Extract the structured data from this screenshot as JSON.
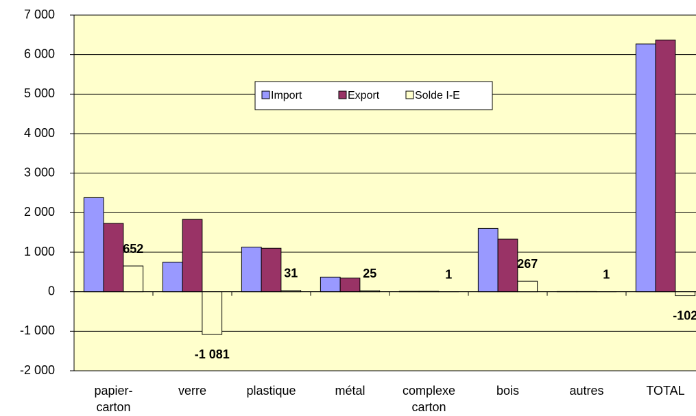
{
  "chart_data": {
    "type": "bar",
    "categories": [
      "papier-carton",
      "verre",
      "plastique",
      "métal",
      "complexe carton",
      "bois",
      "autres",
      "TOTAL"
    ],
    "series": [
      {
        "name": "Import",
        "color": "#9999ff",
        "values": [
          2380,
          750,
          1130,
          370,
          10,
          1600,
          5,
          6270
        ]
      },
      {
        "name": "Export",
        "color": "#993366",
        "values": [
          1730,
          1830,
          1100,
          345,
          10,
          1330,
          5,
          6370
        ]
      },
      {
        "name": "Solde I-E",
        "color": "#ffffcc",
        "values": [
          652,
          -1081,
          31,
          25,
          1,
          267,
          1,
          -102
        ],
        "value_labels": [
          "652",
          "-1 081",
          "31",
          "25",
          "1",
          "267",
          "1",
          "-102"
        ]
      }
    ],
    "ylim": [
      -2000,
      7000
    ],
    "yticks": [
      {
        "value": -2000,
        "label": "-2 000"
      },
      {
        "value": -1000,
        "label": "-1 000"
      },
      0,
      {
        "value": 1000,
        "label": "1 000"
      },
      {
        "value": 2000,
        "label": "2 000"
      },
      {
        "value": 3000,
        "label": "3 000"
      },
      {
        "value": 4000,
        "label": "4 000"
      },
      {
        "value": 5000,
        "label": "5 000"
      },
      {
        "value": 6000,
        "label": "6 000"
      },
      {
        "value": 7000,
        "label": "7 000"
      }
    ],
    "grid": true,
    "legend": "top-center",
    "plot_background": "#ffffcc"
  }
}
